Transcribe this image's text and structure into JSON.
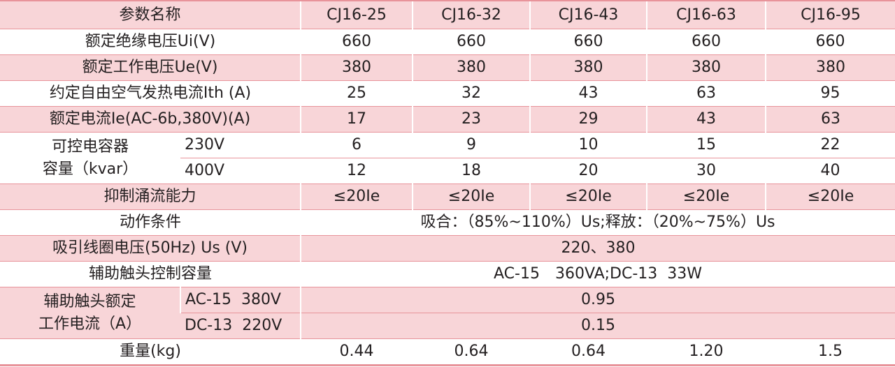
{
  "table": {
    "header": [
      "参数名称",
      "CJ16-25",
      "CJ16-32",
      "CJ16-43",
      "CJ16-63",
      "CJ16-95"
    ],
    "rows": [
      [
        "额定绝缘电压Ui(V)",
        "660",
        "660",
        "660",
        "660",
        "660"
      ],
      [
        "额定工作电压Ue(V)",
        "380",
        "380",
        "380",
        "380",
        "380"
      ],
      [
        "约定自由空气发热电流Ith (A)",
        "25",
        "32",
        "43",
        "63",
        "95"
      ],
      [
        "额定电流Ie(AC-6b,380V)(A)",
        "17",
        "23",
        "29",
        "43",
        "63"
      ]
    ],
    "capacitor": {
      "label": [
        "可控电容器",
        "容量（kvar）"
      ],
      "rows": [
        [
          "230V",
          "6",
          "9",
          "10",
          "15",
          "22"
        ],
        [
          "400V",
          "12",
          "18",
          "20",
          "30",
          "40"
        ]
      ]
    },
    "inrush": [
      "抑制涌流能力",
      "≤20Ie",
      "≤20Ie",
      "≤20Ie",
      "≤20Ie",
      "≤20Ie"
    ],
    "merged": [
      [
        "动作条件",
        "吸合：（85%~110%）Us;释放：（20%~75%）Us"
      ],
      [
        "吸引线圈电压(50Hz) Us (V)",
        "220、380"
      ],
      [
        "辅助触头控制容量",
        "AC-15　360VA;DC-13  33W"
      ]
    ],
    "aux": {
      "label": [
        "辅助触头额定",
        "工作电流（A）"
      ],
      "rows": [
        [
          "AC-15  380V",
          "0.95"
        ],
        [
          "DC-13  220V",
          "0.15"
        ]
      ]
    },
    "weight": [
      "重量(kg)",
      "0.44",
      "0.64",
      "0.64",
      "1.20",
      "1.5"
    ]
  }
}
